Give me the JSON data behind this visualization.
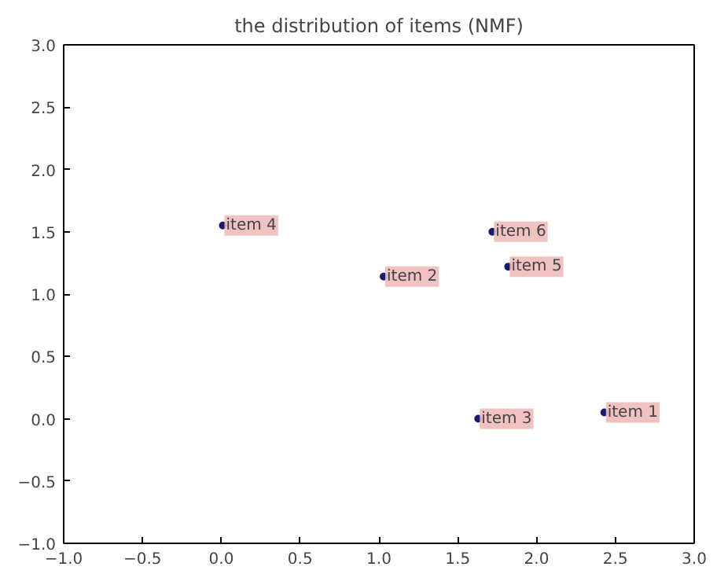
{
  "chart_data": {
    "type": "scatter",
    "title": "the distribution of items (NMF)",
    "x": [
      2.43,
      1.03,
      1.63,
      0.01,
      1.82,
      1.72
    ],
    "series": [
      {
        "color": "#1a1a6e",
        "values": [
          0.05,
          1.14,
          0.0,
          1.55,
          1.22,
          1.5
        ]
      }
    ],
    "annotations": [
      {
        "text": "item 1",
        "x": 2.43,
        "y": 0.05
      },
      {
        "text": "item 2",
        "x": 1.03,
        "y": 1.14
      },
      {
        "text": "item 3",
        "x": 1.63,
        "y": 0.0
      },
      {
        "text": "item 4",
        "x": 0.01,
        "y": 1.55
      },
      {
        "text": "item 5",
        "x": 1.82,
        "y": 1.22
      },
      {
        "text": "item 6",
        "x": 1.72,
        "y": 1.5
      }
    ],
    "xlim": [
      -1.0,
      3.0
    ],
    "ylim": [
      -1.0,
      3.0
    ],
    "xticks": [
      {
        "value": -1.0,
        "label": "−1.0"
      },
      {
        "value": -0.5,
        "label": "−0.5"
      },
      {
        "value": 0.0,
        "label": "0.0"
      },
      {
        "value": 0.5,
        "label": "0.5"
      },
      {
        "value": 1.0,
        "label": "1.0"
      },
      {
        "value": 1.5,
        "label": "1.5"
      },
      {
        "value": 2.0,
        "label": "2.0"
      },
      {
        "value": 2.5,
        "label": "2.5"
      },
      {
        "value": 3.0,
        "label": "3.0"
      }
    ],
    "yticks": [
      {
        "value": -1.0,
        "label": "−1.0"
      },
      {
        "value": -0.5,
        "label": "−0.5"
      },
      {
        "value": 0.0,
        "label": "0.0"
      },
      {
        "value": 0.5,
        "label": "0.5"
      },
      {
        "value": 1.0,
        "label": "1.0"
      },
      {
        "value": 1.5,
        "label": "1.5"
      },
      {
        "value": 2.0,
        "label": "2.0"
      },
      {
        "value": 2.5,
        "label": "2.5"
      },
      {
        "value": 3.0,
        "label": "3.0"
      }
    ],
    "grid": false,
    "marker": "circle"
  }
}
